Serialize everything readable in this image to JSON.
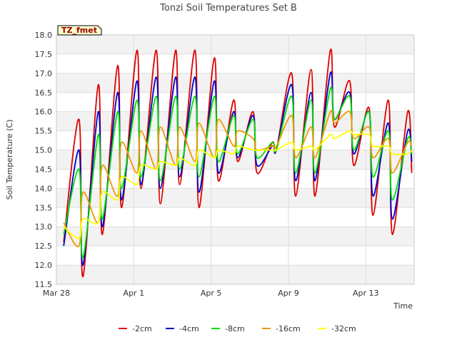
{
  "chart_data": {
    "type": "line",
    "title": "Tonzi Soil Temperatures Set B",
    "xlabel": "Time",
    "ylabel": "Soil Temperature (C)",
    "tag": "TZ_fmet",
    "xlim": [
      "2024-03-28",
      "2024-04-15T12:00"
    ],
    "x_ticks": [
      {
        "date": "2024-03-28",
        "label": "Mar 28"
      },
      {
        "date": "2024-04-01",
        "label": "Apr 1"
      },
      {
        "date": "2024-04-05",
        "label": "Apr 5"
      },
      {
        "date": "2024-04-09",
        "label": "Apr 9"
      },
      {
        "date": "2024-04-13",
        "label": "Apr 13"
      }
    ],
    "ylim": [
      11.5,
      18.0
    ],
    "y_ticks": [
      "11.5",
      "12.0",
      "12.5",
      "13.0",
      "13.5",
      "14.0",
      "14.5",
      "15.0",
      "15.5",
      "16.0",
      "16.5",
      "17.0",
      "17.5",
      "18.0"
    ],
    "grid": true,
    "legend_position": "bottom",
    "x": [
      "2024-03-28T09:00",
      "2024-03-29T04:00",
      "2024-03-29T09:00",
      "2024-03-30T04:00",
      "2024-03-30T09:00",
      "2024-03-31T04:00",
      "2024-03-31T09:00",
      "2024-04-01T04:00",
      "2024-04-01T09:00",
      "2024-04-02T04:00",
      "2024-04-02T09:00",
      "2024-04-03T04:00",
      "2024-04-03T09:00",
      "2024-04-04T04:00",
      "2024-04-04T09:00",
      "2024-04-05T04:00",
      "2024-04-05T09:00",
      "2024-04-06T04:00",
      "2024-04-06T09:00",
      "2024-04-07T04:00",
      "2024-04-07T09:00",
      "2024-04-08T04:00",
      "2024-04-08T09:00",
      "2024-04-09T04:00",
      "2024-04-09T09:00",
      "2024-04-10T04:00",
      "2024-04-10T09:00",
      "2024-04-11T04:00",
      "2024-04-11T09:00",
      "2024-04-12T04:00",
      "2024-04-12T09:00",
      "2024-04-13T04:00",
      "2024-04-13T09:00",
      "2024-04-14T04:00",
      "2024-04-14T09:00",
      "2024-04-15T04:00",
      "2024-04-15T09:00"
    ],
    "series": [
      {
        "name": "-2cm",
        "color": "#dd0000",
        "values": [
          12.6,
          15.8,
          11.7,
          16.7,
          12.8,
          17.2,
          13.5,
          17.6,
          14.0,
          17.6,
          13.6,
          17.6,
          14.1,
          17.6,
          13.5,
          17.4,
          14.2,
          16.3,
          14.7,
          16.0,
          14.4,
          15.2,
          15.0,
          17.0,
          13.8,
          17.1,
          13.8,
          17.6,
          15.6,
          16.8,
          14.6,
          16.1,
          13.3,
          16.3,
          12.8,
          16.0,
          14.4
        ]
      },
      {
        "name": "-4cm",
        "color": "#0000cc",
        "values": [
          12.5,
          15.0,
          12.0,
          16.0,
          13.0,
          16.5,
          13.7,
          16.8,
          14.1,
          16.9,
          14.0,
          16.9,
          14.3,
          16.9,
          13.9,
          16.8,
          14.4,
          16.0,
          14.8,
          15.9,
          14.6,
          15.1,
          15.0,
          16.7,
          14.2,
          16.5,
          14.2,
          17.0,
          15.8,
          16.5,
          14.9,
          16.0,
          13.8,
          15.7,
          13.2,
          15.5,
          14.7
        ]
      },
      {
        "name": "-8cm",
        "color": "#00dd00",
        "values": [
          12.8,
          14.5,
          12.2,
          15.4,
          13.2,
          16.0,
          14.0,
          16.3,
          14.3,
          16.4,
          14.2,
          16.4,
          14.5,
          16.4,
          14.3,
          16.4,
          14.7,
          15.9,
          14.9,
          15.8,
          14.8,
          15.2,
          15.0,
          16.4,
          14.4,
          16.3,
          14.4,
          16.6,
          15.8,
          16.4,
          15.0,
          16.0,
          14.3,
          15.5,
          13.7,
          15.3,
          14.9
        ]
      },
      {
        "name": "-16cm",
        "color": "#ee9900",
        "values": [
          13.1,
          12.5,
          13.9,
          13.1,
          14.6,
          13.8,
          15.2,
          14.4,
          15.5,
          14.5,
          15.6,
          14.6,
          15.6,
          14.7,
          15.7,
          14.8,
          15.8,
          15.1,
          15.5,
          15.3,
          15.0,
          15.1,
          15.1,
          15.9,
          14.8,
          15.6,
          14.8,
          16.0,
          15.7,
          16.0,
          15.3,
          15.6,
          14.8,
          15.3,
          14.4,
          15.2,
          15.1
        ]
      },
      {
        "name": "-32cm",
        "color": "#ffff00",
        "values": [
          13.0,
          12.7,
          13.2,
          13.1,
          13.9,
          13.7,
          14.3,
          14.1,
          14.6,
          14.5,
          14.7,
          14.6,
          14.8,
          14.6,
          15.0,
          14.8,
          15.0,
          14.9,
          15.1,
          15.0,
          15.0,
          15.0,
          15.0,
          15.2,
          15.0,
          15.1,
          15.0,
          15.4,
          15.3,
          15.5,
          15.4,
          15.4,
          15.1,
          15.1,
          14.9,
          14.9,
          15.0
        ]
      }
    ]
  }
}
